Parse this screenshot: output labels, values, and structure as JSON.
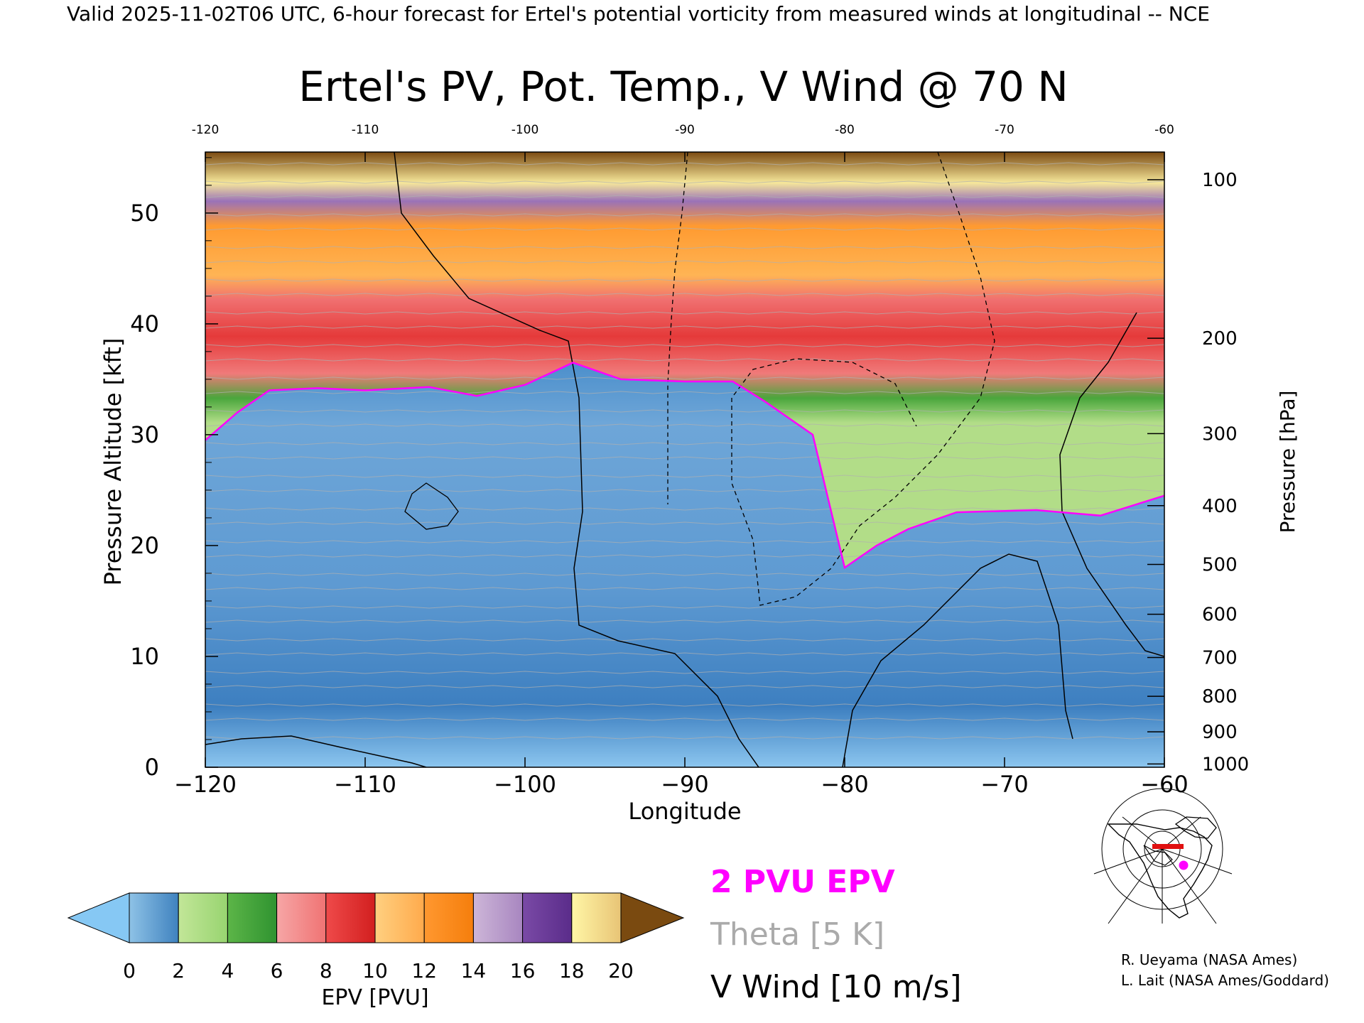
{
  "header": {
    "valid_line": "Valid 2025-11-02T06 UTC, 6-hour forecast for Ertel's potential vorticity from measured winds at longitudinal -- NCE"
  },
  "chart_data": {
    "type": "heatmap",
    "title": "Ertel's PV, Pot. Temp., V Wind @ 70 N",
    "xlabel": "Longitude",
    "ylabel": "Pressure Altitude [kft]",
    "y2label": "Pressure [hPa]",
    "xlim": [
      -120,
      -60
    ],
    "ylim": [
      0,
      55.5
    ],
    "x_ticks": [
      -120,
      -110,
      -100,
      -90,
      -80,
      -70,
      -60
    ],
    "x_tick_labels": [
      "−120",
      "−110",
      "−100",
      "−90",
      "−80",
      "−70",
      "−60"
    ],
    "y_ticks": [
      0,
      10,
      20,
      30,
      40,
      50
    ],
    "y_tick_labels": [
      "0",
      "10",
      "20",
      "30",
      "40",
      "50"
    ],
    "pressure_ticks": [
      {
        "kft": 53.0,
        "label": "100"
      },
      {
        "kft": 38.7,
        "label": "200"
      },
      {
        "kft": 30.1,
        "label": "300"
      },
      {
        "kft": 23.6,
        "label": "400"
      },
      {
        "kft": 18.3,
        "label": "500"
      },
      {
        "kft": 13.8,
        "label": "600"
      },
      {
        "kft": 9.9,
        "label": "700"
      },
      {
        "kft": 6.4,
        "label": "800"
      },
      {
        "kft": 3.2,
        "label": "900"
      },
      {
        "kft": 0.3,
        "label": "1000"
      }
    ],
    "epv_2pvu_level_kft": [
      {
        "lon": -120,
        "kft": 29.5
      },
      {
        "lon": -118,
        "kft": 32.0
      },
      {
        "lon": -116,
        "kft": 34.0
      },
      {
        "lon": -113,
        "kft": 34.2
      },
      {
        "lon": -110,
        "kft": 34.0
      },
      {
        "lon": -106,
        "kft": 34.3
      },
      {
        "lon": -103,
        "kft": 33.5
      },
      {
        "lon": -100,
        "kft": 34.5
      },
      {
        "lon": -97,
        "kft": 36.5
      },
      {
        "lon": -94,
        "kft": 35.0
      },
      {
        "lon": -90,
        "kft": 34.8
      },
      {
        "lon": -87,
        "kft": 34.8
      },
      {
        "lon": -85,
        "kft": 33.0
      },
      {
        "lon": -82,
        "kft": 30.0
      },
      {
        "lon": -81,
        "kft": 24.0
      },
      {
        "lon": -80,
        "kft": 18.0
      },
      {
        "lon": -78,
        "kft": 20.0
      },
      {
        "lon": -76,
        "kft": 21.5
      },
      {
        "lon": -73,
        "kft": 23.0
      },
      {
        "lon": -68,
        "kft": 23.2
      },
      {
        "lon": -64,
        "kft": 22.7
      },
      {
        "lon": -60,
        "kft": 24.5
      }
    ],
    "epv_2pvu_level_lower_bound_kft": [
      {
        "lon": -120,
        "kft": 0
      },
      {
        "lon": -60,
        "kft": 0
      }
    ],
    "epv_colorbar": {
      "label": "EPV [PVU]",
      "ticks": [
        "0",
        "2",
        "4",
        "6",
        "8",
        "10",
        "12",
        "14",
        "16",
        "18",
        "20"
      ],
      "bins": [
        {
          "from": 0,
          "to": 2,
          "colors": [
            "#8ec2e6",
            "#3f82bf"
          ]
        },
        {
          "from": 2,
          "to": 4,
          "colors": [
            "#c2e698",
            "#98d470"
          ]
        },
        {
          "from": 4,
          "to": 6,
          "colors": [
            "#5cb548",
            "#2f9330"
          ]
        },
        {
          "from": 6,
          "to": 8,
          "colors": [
            "#f6a6a6",
            "#f07373"
          ]
        },
        {
          "from": 8,
          "to": 10,
          "colors": [
            "#ef4a4a",
            "#d21f1f"
          ]
        },
        {
          "from": 10,
          "to": 12,
          "colors": [
            "#ffd080",
            "#ffaa4c"
          ]
        },
        {
          "from": 12,
          "to": 14,
          "colors": [
            "#ff9830",
            "#f57e0c"
          ]
        },
        {
          "from": 14,
          "to": 16,
          "colors": [
            "#cdb6d8",
            "#a886c0"
          ]
        },
        {
          "from": 16,
          "to": 18,
          "colors": [
            "#7a4aa6",
            "#5a2c8a"
          ]
        },
        {
          "from": 18,
          "to": 20,
          "colors": [
            "#fff6a6",
            "#e8c476"
          ]
        }
      ],
      "under_color": "#86c8f4",
      "over_color": "#7a4a10"
    },
    "legend": {
      "epv_2pvu": {
        "label": "2 PVU EPV",
        "color": "#ff00ff"
      },
      "theta": {
        "label": "Theta [5 K]",
        "color": "#aaaaaa"
      },
      "vwind": {
        "label": "V Wind [10 m/s]",
        "color": "#000000"
      }
    }
  },
  "credits": {
    "line1": "R. Ueyama (NASA Ames)",
    "line2": "L. Lait (NASA Ames/Goddard)"
  }
}
